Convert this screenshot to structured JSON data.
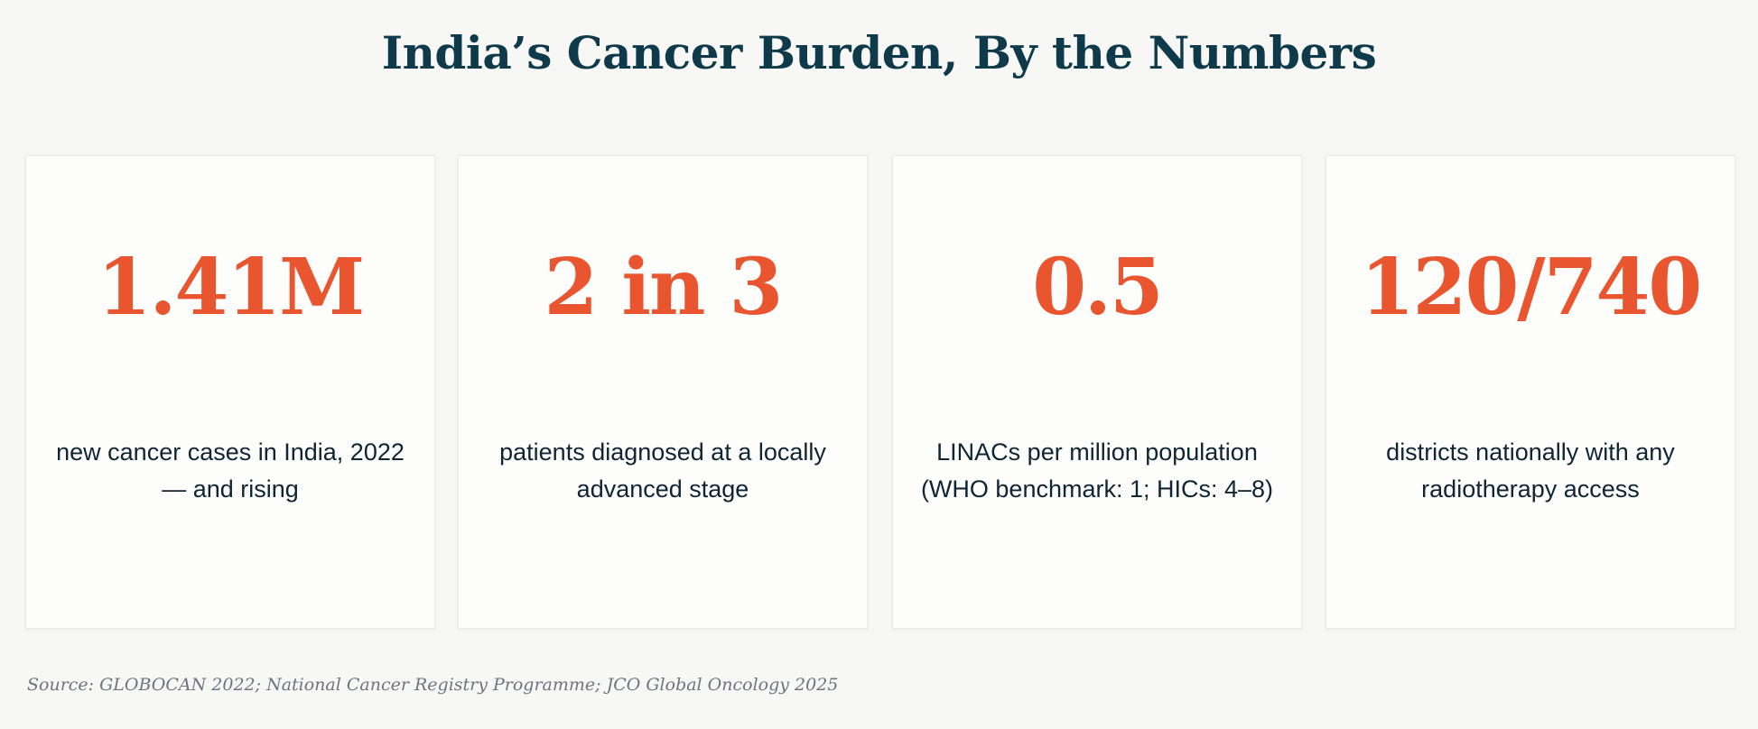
{
  "title": "India’s Cancer Burden, By the Numbers",
  "colors": {
    "background": "#f7f7f5",
    "title": "#0e3a4a",
    "accent": "#e8552f",
    "label": "#0f2533",
    "source": "#6b7580"
  },
  "stats": [
    {
      "value": "1.41M",
      "label": "new cancer cases in India, 2022 — and rising"
    },
    {
      "value": "2 in 3",
      "label": "patients diagnosed at a locally advanced stage"
    },
    {
      "value": "0.5",
      "label": "LINACs per million population (WHO benchmark: 1; HICs: 4–8)"
    },
    {
      "value": "120/740",
      "label": "districts nationally with any radiotherapy access"
    }
  ],
  "source": "Source: GLOBOCAN 2022; National Cancer Registry Programme; JCO Global Oncology 2025"
}
